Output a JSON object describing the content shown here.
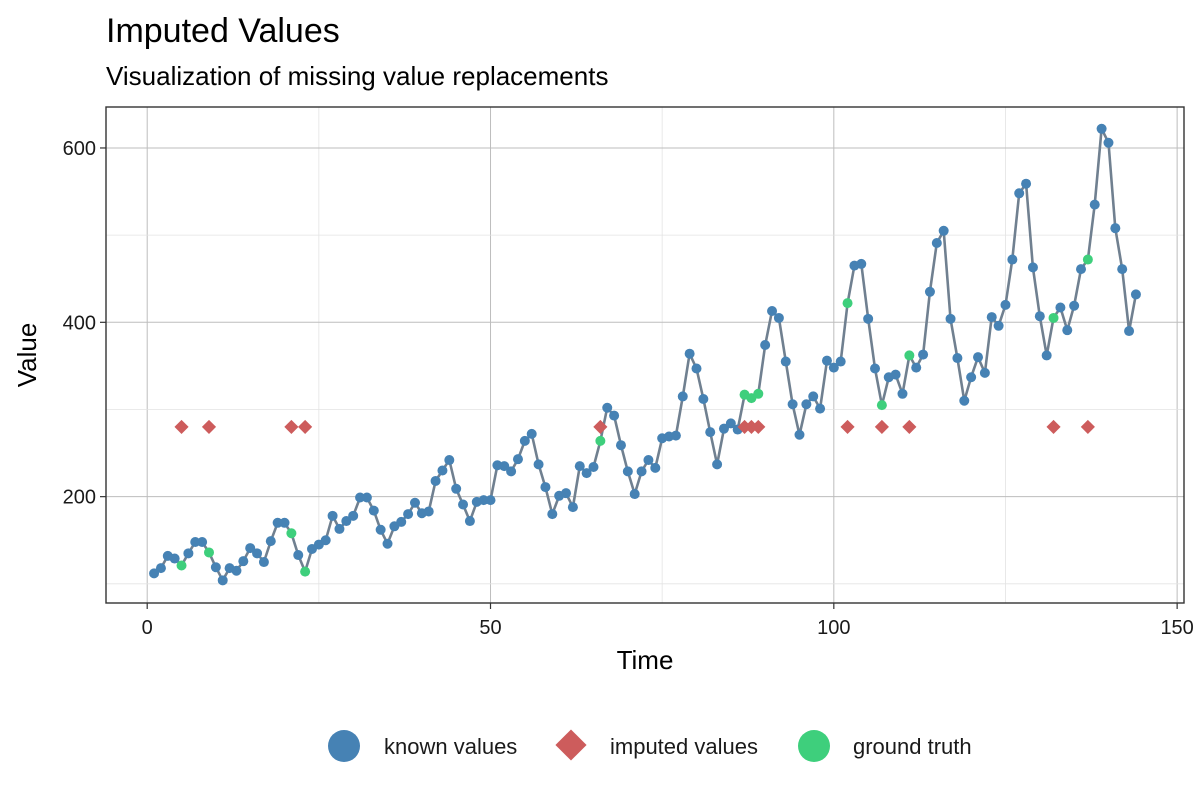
{
  "chart_data": {
    "type": "scatter",
    "title": "Imputed Values",
    "subtitle": "Visualization of missing value replacements",
    "xlabel": "Time",
    "ylabel": "Value",
    "xlim": [
      -6,
      151
    ],
    "ylim": [
      78,
      647
    ],
    "x_ticks": [
      0,
      50,
      100,
      150
    ],
    "y_ticks": [
      200,
      400,
      600
    ],
    "grid": true,
    "legend_position": "bottom",
    "colors": {
      "known": "#4682b4",
      "imputed": "#cd5c5c",
      "truth": "#3ecf7c",
      "line": "#708090"
    },
    "series": [
      {
        "name": "known values",
        "marker": "circle",
        "x": [
          1,
          2,
          3,
          4,
          6,
          7,
          8,
          10,
          11,
          12,
          13,
          14,
          15,
          16,
          17,
          18,
          19,
          20,
          22,
          24,
          25,
          26,
          27,
          28,
          29,
          30,
          31,
          32,
          33,
          34,
          35,
          36,
          37,
          38,
          39,
          40,
          41,
          42,
          43,
          44,
          45,
          46,
          47,
          48,
          49,
          50,
          51,
          52,
          53,
          54,
          55,
          56,
          57,
          58,
          59,
          60,
          61,
          62,
          63,
          64,
          65,
          67,
          68,
          69,
          70,
          71,
          72,
          73,
          74,
          75,
          76,
          77,
          78,
          79,
          80,
          81,
          82,
          83,
          84,
          85,
          86,
          90,
          91,
          92,
          93,
          94,
          95,
          96,
          97,
          98,
          99,
          100,
          101,
          103,
          104,
          105,
          106,
          108,
          109,
          110,
          112,
          113,
          114,
          115,
          116,
          117,
          118,
          119,
          120,
          121,
          122,
          123,
          124,
          125,
          126,
          127,
          128,
          129,
          130,
          131,
          133,
          134,
          135,
          136,
          138,
          139,
          140,
          141,
          142,
          143,
          144
        ],
        "y": [
          112,
          118,
          132,
          129,
          135,
          148,
          148,
          119,
          104,
          118,
          115,
          126,
          141,
          135,
          125,
          149,
          170,
          170,
          133,
          140,
          145,
          150,
          178,
          163,
          172,
          178,
          199,
          199,
          184,
          162,
          146,
          166,
          171,
          180,
          193,
          181,
          183,
          218,
          230,
          242,
          209,
          191,
          172,
          194,
          196,
          196,
          236,
          235,
          229,
          243,
          264,
          272,
          237,
          211,
          180,
          201,
          204,
          188,
          235,
          227,
          234,
          302,
          293,
          259,
          229,
          203,
          229,
          242,
          233,
          267,
          269,
          270,
          315,
          364,
          347,
          312,
          274,
          237,
          278,
          284,
          277,
          374,
          413,
          405,
          355,
          306,
          271,
          306,
          315,
          301,
          356,
          348,
          355,
          465,
          467,
          404,
          347,
          337,
          340,
          318,
          348,
          363,
          435,
          491,
          505,
          404,
          359,
          310,
          337,
          360,
          342,
          406,
          396,
          420,
          472,
          548,
          559,
          463,
          407,
          362,
          417,
          391,
          419,
          461,
          535,
          622,
          606,
          508,
          461,
          390,
          432
        ]
      },
      {
        "name": "imputed values",
        "marker": "diamond",
        "x": [
          5,
          9,
          21,
          23,
          66,
          87,
          88,
          89,
          102,
          107,
          111,
          132,
          137
        ],
        "y": [
          280,
          280,
          280,
          280,
          280,
          280,
          280,
          280,
          280,
          280,
          280,
          280,
          280
        ]
      },
      {
        "name": "ground truth",
        "marker": "circle",
        "x": [
          5,
          9,
          21,
          23,
          66,
          87,
          88,
          89,
          102,
          107,
          111,
          132,
          137
        ],
        "y": [
          121,
          136,
          158,
          114,
          264,
          317,
          313,
          318,
          422,
          305,
          362,
          405,
          472
        ]
      }
    ]
  }
}
